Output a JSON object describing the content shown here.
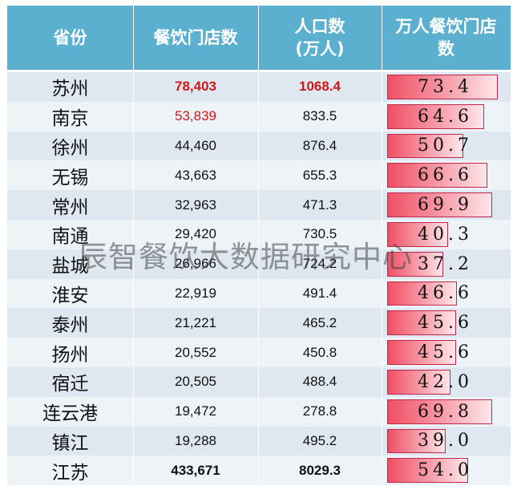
{
  "headers": {
    "province": "省份",
    "restaurants": "餐饮门店数",
    "population": "人口数\n(万人)",
    "density": "万人餐饮门店数"
  },
  "rows": [
    {
      "province": "苏州",
      "restaurants": "78,403",
      "population": "1068.4",
      "density": "73.4"
    },
    {
      "province": "南京",
      "restaurants": "53,839",
      "population": "833.5",
      "density": "64.6"
    },
    {
      "province": "徐州",
      "restaurants": "44,460",
      "population": "876.4",
      "density": "50.7"
    },
    {
      "province": "无锡",
      "restaurants": "43,663",
      "population": "655.3",
      "density": "66.6"
    },
    {
      "province": "常州",
      "restaurants": "32,963",
      "population": "471.3",
      "density": "69.9"
    },
    {
      "province": "南通",
      "restaurants": "29,420",
      "population": "730.5",
      "density": "40.3"
    },
    {
      "province": "盐城",
      "restaurants": "26,966",
      "population": "724.2",
      "density": "37.2"
    },
    {
      "province": "淮安",
      "restaurants": "22,919",
      "population": "491.4",
      "density": "46.6"
    },
    {
      "province": "泰州",
      "restaurants": "21,221",
      "population": "465.2",
      "density": "45.6"
    },
    {
      "province": "扬州",
      "restaurants": "20,552",
      "population": "450.8",
      "density": "45.6"
    },
    {
      "province": "宿迁",
      "restaurants": "20,505",
      "population": "488.4",
      "density": "42.0"
    },
    {
      "province": "连云港",
      "restaurants": "19,472",
      "population": "278.8",
      "density": "69.8"
    },
    {
      "province": "镇江",
      "restaurants": "19,288",
      "population": "495.2",
      "density": "39.0"
    },
    {
      "province": "江苏",
      "restaurants": "433,671",
      "population": "8029.3",
      "density": "54.0"
    }
  ],
  "density_bar_max": 80,
  "watermark": "辰智餐饮大数据研究中心",
  "colors": {
    "header_bg": "#5bb0d0",
    "row_odd": "#dfe8f1",
    "row_even": "#eef3f8",
    "highlight_text": "#d01818",
    "bar_fill": "#ef4f63"
  }
}
